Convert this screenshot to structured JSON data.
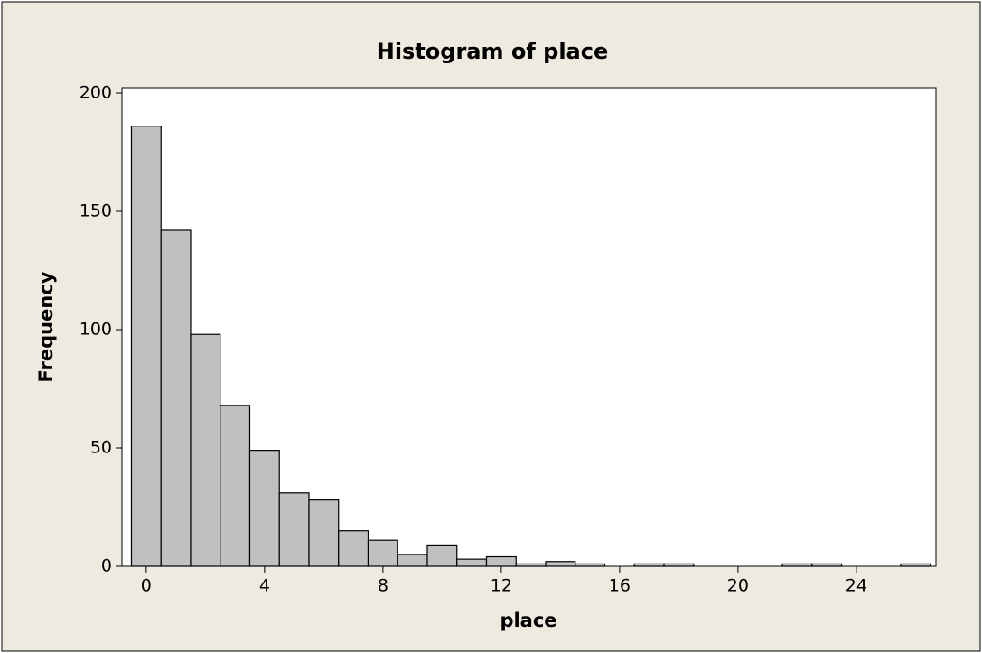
{
  "chart_data": {
    "type": "histogram",
    "title": "Histogram of place",
    "x_label": "place",
    "y_label": "Frequency",
    "bins": [
      -0.5,
      0.5,
      1.5,
      2.5,
      3.5,
      4.5,
      5.5,
      6.5,
      7.5,
      8.5,
      9.5,
      10.5,
      11.5,
      12.5,
      13.5,
      14.5,
      15.5,
      16.5,
      17.5,
      18.5,
      19.5,
      20.5,
      21.5,
      22.5,
      23.5,
      24.5,
      25.5,
      26.5
    ],
    "values": [
      186,
      142,
      98,
      68,
      49,
      31,
      28,
      15,
      11,
      5,
      9,
      3,
      4,
      1,
      2,
      1,
      0,
      1,
      1,
      0,
      0,
      0,
      1,
      1,
      0,
      0,
      1
    ],
    "color": "#c0c0c0",
    "xlim": [
      -0.82,
      26.69
    ],
    "xticks": [
      0,
      4,
      8,
      12,
      16,
      20,
      24
    ],
    "ylim": [
      0,
      202.3
    ],
    "yticks": [
      0,
      50,
      100,
      150,
      200
    ]
  }
}
